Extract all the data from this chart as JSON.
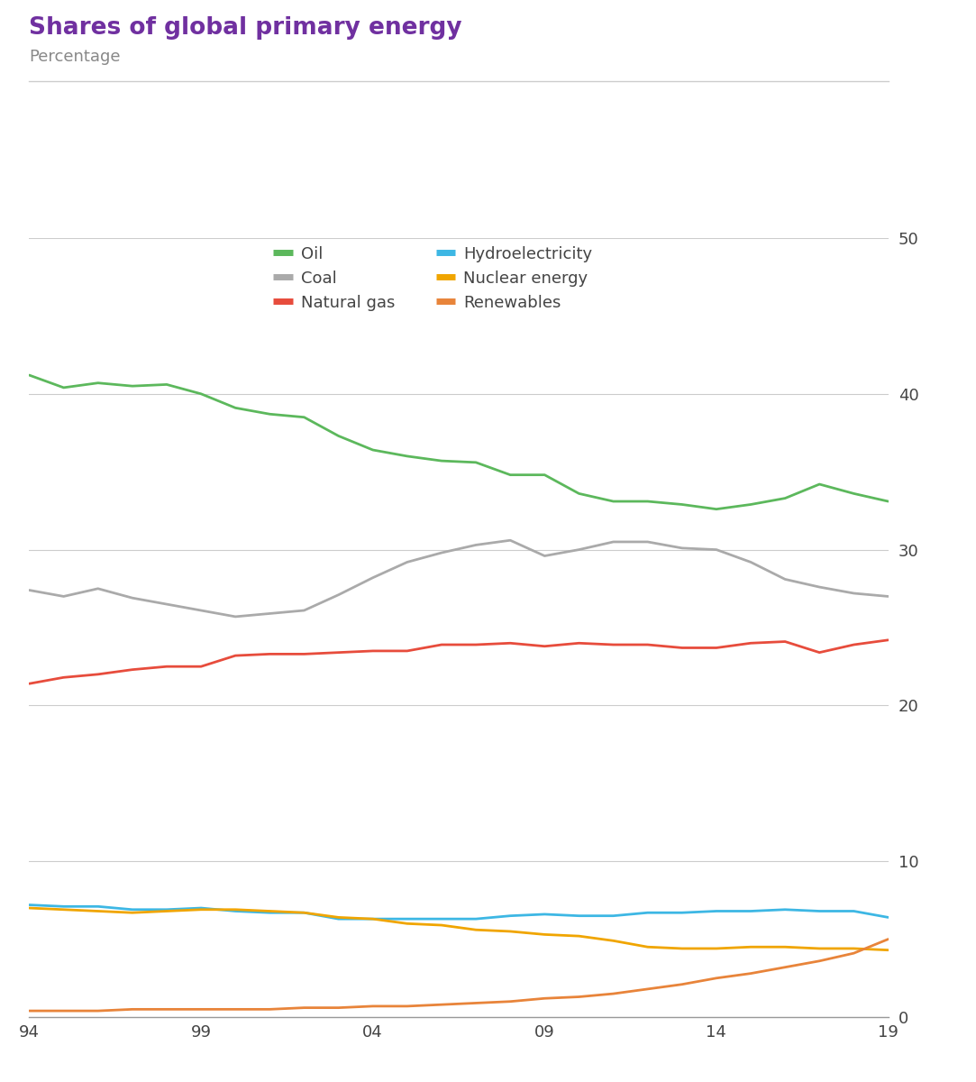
{
  "title": "Shares of global primary energy",
  "subtitle": "Percentage",
  "title_color": "#7030a0",
  "subtitle_color": "#888888",
  "years": [
    1994,
    1995,
    1996,
    1997,
    1998,
    1999,
    2000,
    2001,
    2002,
    2003,
    2004,
    2005,
    2006,
    2007,
    2008,
    2009,
    2010,
    2011,
    2012,
    2013,
    2014,
    2015,
    2016,
    2017,
    2018,
    2019
  ],
  "series": [
    {
      "name": "Oil",
      "color": "#5cb85c",
      "data": [
        41.2,
        40.4,
        40.7,
        40.5,
        40.6,
        40.0,
        39.1,
        38.7,
        38.5,
        37.3,
        36.4,
        36.0,
        35.7,
        35.6,
        34.8,
        34.8,
        33.6,
        33.1,
        33.1,
        32.9,
        32.6,
        32.9,
        33.3,
        34.2,
        33.6,
        33.1
      ]
    },
    {
      "name": "Coal",
      "color": "#aaaaaa",
      "data": [
        27.4,
        27.0,
        27.5,
        26.9,
        26.5,
        26.1,
        25.7,
        25.9,
        26.1,
        27.1,
        28.2,
        29.2,
        29.8,
        30.3,
        30.6,
        29.6,
        30.0,
        30.5,
        30.5,
        30.1,
        30.0,
        29.2,
        28.1,
        27.6,
        27.2,
        27.0
      ]
    },
    {
      "name": "Natural gas",
      "color": "#e74c3c",
      "data": [
        21.4,
        21.8,
        22.0,
        22.3,
        22.5,
        22.5,
        23.2,
        23.3,
        23.3,
        23.4,
        23.5,
        23.5,
        23.9,
        23.9,
        24.0,
        23.8,
        24.0,
        23.9,
        23.9,
        23.7,
        23.7,
        24.0,
        24.1,
        23.4,
        23.9,
        24.2
      ]
    },
    {
      "name": "Hydroelectricity",
      "color": "#3db7e4",
      "data": [
        7.2,
        7.1,
        7.1,
        6.9,
        6.9,
        7.0,
        6.8,
        6.7,
        6.7,
        6.3,
        6.3,
        6.3,
        6.3,
        6.3,
        6.5,
        6.6,
        6.5,
        6.5,
        6.7,
        6.7,
        6.8,
        6.8,
        6.9,
        6.8,
        6.8,
        6.4
      ]
    },
    {
      "name": "Nuclear energy",
      "color": "#f0a500",
      "data": [
        7.0,
        6.9,
        6.8,
        6.7,
        6.8,
        6.9,
        6.9,
        6.8,
        6.7,
        6.4,
        6.3,
        6.0,
        5.9,
        5.6,
        5.5,
        5.3,
        5.2,
        4.9,
        4.5,
        4.4,
        4.4,
        4.5,
        4.5,
        4.4,
        4.4,
        4.3
      ]
    },
    {
      "name": "Renewables",
      "color": "#e8843a",
      "data": [
        0.4,
        0.4,
        0.4,
        0.5,
        0.5,
        0.5,
        0.5,
        0.5,
        0.6,
        0.6,
        0.7,
        0.7,
        0.8,
        0.9,
        1.0,
        1.2,
        1.3,
        1.5,
        1.8,
        2.1,
        2.5,
        2.8,
        3.2,
        3.6,
        4.1,
        5.0
      ]
    }
  ],
  "ylim": [
    0,
    50
  ],
  "yticks": [
    0,
    10,
    20,
    30,
    40,
    50
  ],
  "xticks": [
    1994,
    1999,
    2004,
    2009,
    2014,
    2019
  ],
  "xticklabels": [
    "94",
    "99",
    "04",
    "09",
    "14",
    "19"
  ],
  "background_color": "#ffffff",
  "grid_color": "#cccccc",
  "linewidth": 2.0
}
